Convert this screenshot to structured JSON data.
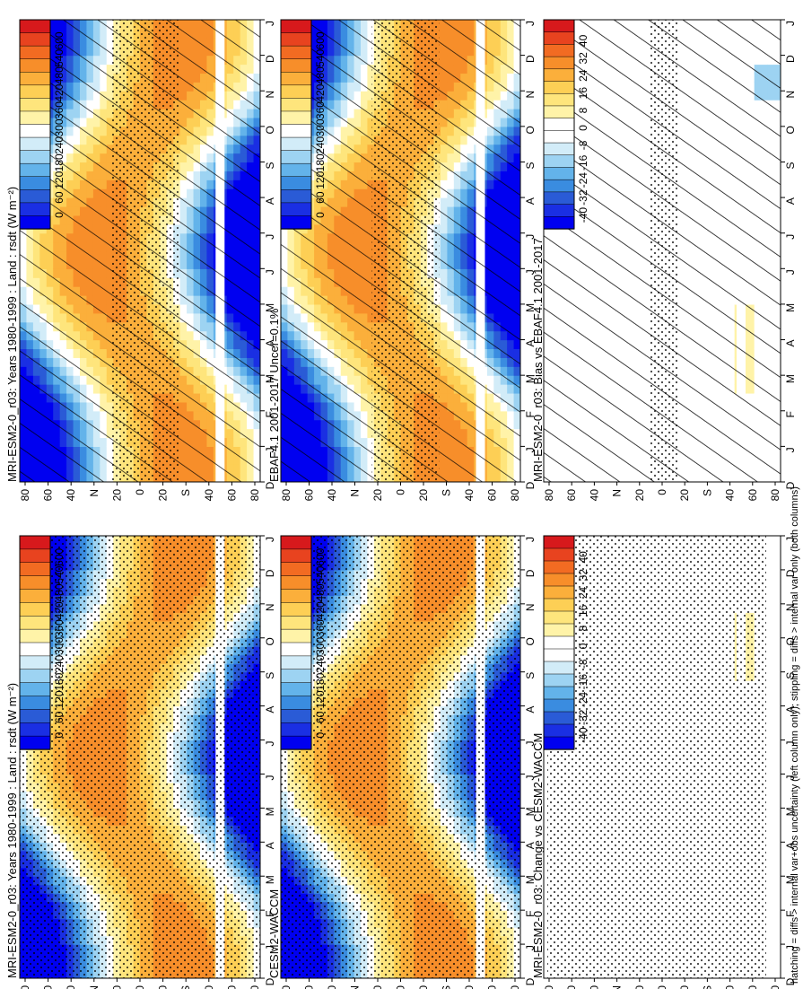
{
  "figure": {
    "footer": "hatching = diffs > internal var+obs uncertainty (left column only); stippling = diffs > internal var only (both columns)"
  },
  "chart_data": [
    {
      "type": "heatmap",
      "title": "MRI-ESM2-0_r03: Years 1980-1999 : Land : rsdt (W m⁻²)",
      "x_months": [
        "D",
        "J",
        "F",
        "M",
        "A",
        "M",
        "J",
        "J",
        "A",
        "S",
        "O",
        "N",
        "D",
        "J"
      ],
      "y_lat_labels": [
        "80",
        "60",
        "40",
        "N",
        "20",
        "0",
        "20",
        "S",
        "40",
        "60",
        "80"
      ],
      "colorbar_ticks": [
        "600",
        "540",
        "480",
        "420",
        "360",
        "300",
        "240",
        "180",
        "120",
        "60",
        "0"
      ],
      "colormap": "absolute",
      "overlay": "hatch+stipple"
    },
    {
      "type": "heatmap",
      "title": "EBAF4.1 2001-2017 Uncer=0.1%",
      "x_months": [
        "D",
        "J",
        "F",
        "M",
        "A",
        "M",
        "J",
        "J",
        "A",
        "S",
        "O",
        "N",
        "D",
        "J"
      ],
      "y_lat_labels": [
        "80",
        "60",
        "40",
        "N",
        "20",
        "0",
        "20",
        "S",
        "40",
        "60",
        "80"
      ],
      "colorbar_ticks": [
        "600",
        "540",
        "480",
        "420",
        "360",
        "300",
        "240",
        "180",
        "120",
        "60",
        "0"
      ],
      "colormap": "absolute",
      "overlay": "hatch+stipple"
    },
    {
      "type": "heatmap",
      "title": "MRI-ESM2-0_r03: Bias vs EBAF4.1 2001-2017",
      "x_months": [
        "D",
        "J",
        "F",
        "M",
        "A",
        "M",
        "J",
        "J",
        "A",
        "S",
        "O",
        "N",
        "D",
        "J"
      ],
      "y_lat_labels": [
        "80",
        "60",
        "40",
        "N",
        "20",
        "0",
        "20",
        "S",
        "40",
        "60",
        "80"
      ],
      "colorbar_ticks": [
        "40",
        "32",
        "24",
        "16",
        "8",
        "0",
        "-8",
        "-16",
        "-24",
        "-32",
        "-40"
      ],
      "colormap": "diff",
      "overlay": "hatch+stipple-sparse"
    },
    {
      "type": "heatmap",
      "title": "MRI-ESM2-0_r03: Years 1980-1999 : Land : rsdt (W m⁻²)",
      "x_months": [
        "D",
        "J",
        "F",
        "M",
        "A",
        "M",
        "J",
        "J",
        "A",
        "S",
        "O",
        "N",
        "D",
        "J"
      ],
      "y_lat_labels": [
        "80",
        "60",
        "40",
        "N",
        "20",
        "0",
        "20",
        "S",
        "40",
        "60",
        "80"
      ],
      "colorbar_ticks": [
        "600",
        "540",
        "480",
        "420",
        "360",
        "300",
        "240",
        "180",
        "120",
        "60",
        "0"
      ],
      "colormap": "absolute",
      "overlay": "stipple"
    },
    {
      "type": "heatmap",
      "title": "CESM2-WACCM",
      "x_months": [
        "D",
        "J",
        "F",
        "M",
        "A",
        "M",
        "J",
        "J",
        "A",
        "S",
        "O",
        "N",
        "D",
        "J"
      ],
      "y_lat_labels": [
        "80",
        "60",
        "40",
        "N",
        "20",
        "0",
        "20",
        "S",
        "40",
        "60",
        "80"
      ],
      "colorbar_ticks": [
        "600",
        "540",
        "480",
        "420",
        "360",
        "300",
        "240",
        "180",
        "120",
        "60",
        "0"
      ],
      "colormap": "absolute",
      "overlay": "stipple"
    },
    {
      "type": "heatmap",
      "title": "MRI-ESM2-0_r03: Change vs CESM2-WACCM",
      "x_months": [
        "D",
        "J",
        "F",
        "M",
        "A",
        "M",
        "J",
        "J",
        "A",
        "S",
        "O",
        "N",
        "D",
        "J"
      ],
      "y_lat_labels": [
        "80",
        "60",
        "40",
        "N",
        "20",
        "0",
        "20",
        "S",
        "40",
        "60",
        "80"
      ],
      "colorbar_ticks": [
        "40",
        "32",
        "24",
        "16",
        "8",
        "0",
        "-8",
        "-16",
        "-24",
        "-32",
        "-40"
      ],
      "colormap": "diff",
      "overlay": "stipple-full"
    }
  ],
  "colors": {
    "absolute": [
      "#d7191c",
      "#e8431f",
      "#f26b22",
      "#f78e2a",
      "#fbaf3b",
      "#fdcf55",
      "#fee57c",
      "#fff3a8",
      "#ffffff",
      "#d2ecf8",
      "#9dd3f2",
      "#63b3ea",
      "#3a8ce0",
      "#2a5bd6",
      "#1a2fe3",
      "#0000f0"
    ],
    "diff": [
      "#d7191c",
      "#e8431f",
      "#f26b22",
      "#f78e2a",
      "#fbaf3b",
      "#fdcf55",
      "#fee57c",
      "#fff3a8",
      "#ffffff",
      "#ffffff",
      "#d2ecf8",
      "#9dd3f2",
      "#63b3ea",
      "#3a8ce0",
      "#2a5bd6",
      "#1a2fe3",
      "#0000f0"
    ]
  }
}
